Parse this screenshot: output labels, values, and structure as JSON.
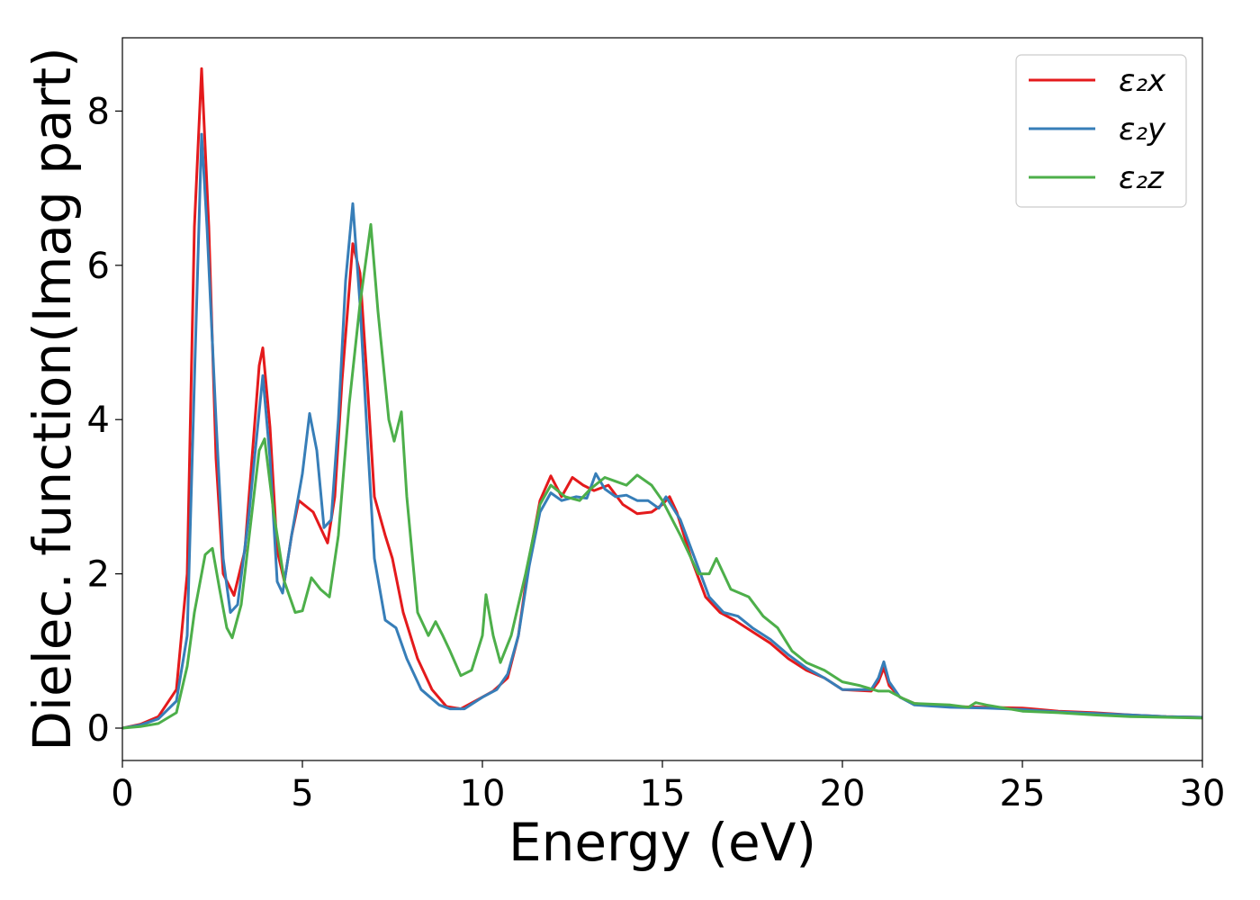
{
  "chart_data": {
    "type": "line",
    "title": "",
    "xlabel": "Energy (eV)",
    "ylabel": "Dielec. function(Imag part)",
    "xlim": [
      0,
      30
    ],
    "ylim": [
      -0.42,
      8.95
    ],
    "xticks": [
      0,
      5,
      10,
      15,
      20,
      25,
      30
    ],
    "yticks": [
      0,
      2,
      4,
      6,
      8
    ],
    "grid": false,
    "legend_position": "top-right",
    "series": [
      {
        "name": "ε₂x",
        "color": "#e41a1c",
        "points": [
          [
            0,
            0
          ],
          [
            0.5,
            0.05
          ],
          [
            1.0,
            0.15
          ],
          [
            1.5,
            0.5
          ],
          [
            1.8,
            2.0
          ],
          [
            2.0,
            6.5
          ],
          [
            2.2,
            8.55
          ],
          [
            2.4,
            6.5
          ],
          [
            2.6,
            3.5
          ],
          [
            2.8,
            2.0
          ],
          [
            3.1,
            1.72
          ],
          [
            3.4,
            2.3
          ],
          [
            3.6,
            3.5
          ],
          [
            3.8,
            4.7
          ],
          [
            3.9,
            4.93
          ],
          [
            4.1,
            3.9
          ],
          [
            4.3,
            2.3
          ],
          [
            4.5,
            1.9
          ],
          [
            4.7,
            2.5
          ],
          [
            4.9,
            2.95
          ],
          [
            5.3,
            2.8
          ],
          [
            5.6,
            2.5
          ],
          [
            5.7,
            2.4
          ],
          [
            5.9,
            3.0
          ],
          [
            6.1,
            4.5
          ],
          [
            6.4,
            6.28
          ],
          [
            6.6,
            5.9
          ],
          [
            6.8,
            4.5
          ],
          [
            7.0,
            3.0
          ],
          [
            7.3,
            2.5
          ],
          [
            7.5,
            2.2
          ],
          [
            7.8,
            1.5
          ],
          [
            8.2,
            0.9
          ],
          [
            8.6,
            0.5
          ],
          [
            9.0,
            0.28
          ],
          [
            9.4,
            0.25
          ],
          [
            9.8,
            0.35
          ],
          [
            10.3,
            0.48
          ],
          [
            10.7,
            0.65
          ],
          [
            11.0,
            1.2
          ],
          [
            11.3,
            2.2
          ],
          [
            11.6,
            2.95
          ],
          [
            11.9,
            3.27
          ],
          [
            12.2,
            3.0
          ],
          [
            12.5,
            3.25
          ],
          [
            12.8,
            3.15
          ],
          [
            13.1,
            3.08
          ],
          [
            13.5,
            3.15
          ],
          [
            13.9,
            2.9
          ],
          [
            14.3,
            2.78
          ],
          [
            14.7,
            2.8
          ],
          [
            15.0,
            2.9
          ],
          [
            15.2,
            3.0
          ],
          [
            15.4,
            2.8
          ],
          [
            15.8,
            2.2
          ],
          [
            16.2,
            1.7
          ],
          [
            16.6,
            1.5
          ],
          [
            17.0,
            1.4
          ],
          [
            17.5,
            1.25
          ],
          [
            18.0,
            1.1
          ],
          [
            18.5,
            0.9
          ],
          [
            19.0,
            0.75
          ],
          [
            19.5,
            0.65
          ],
          [
            20.0,
            0.5
          ],
          [
            20.8,
            0.48
          ],
          [
            21.0,
            0.6
          ],
          [
            21.15,
            0.78
          ],
          [
            21.3,
            0.55
          ],
          [
            21.6,
            0.4
          ],
          [
            22.0,
            0.32
          ],
          [
            23.0,
            0.28
          ],
          [
            24.0,
            0.27
          ],
          [
            25.0,
            0.26
          ],
          [
            26.0,
            0.22
          ],
          [
            27.0,
            0.2
          ],
          [
            28.0,
            0.17
          ],
          [
            29.0,
            0.15
          ],
          [
            30.0,
            0.14
          ]
        ]
      },
      {
        "name": "ε₂y",
        "color": "#377eb8",
        "points": [
          [
            0,
            0
          ],
          [
            0.5,
            0.04
          ],
          [
            1.0,
            0.12
          ],
          [
            1.5,
            0.35
          ],
          [
            1.8,
            1.2
          ],
          [
            2.0,
            4.5
          ],
          [
            2.2,
            7.7
          ],
          [
            2.35,
            6.5
          ],
          [
            2.6,
            4.0
          ],
          [
            2.8,
            2.2
          ],
          [
            3.0,
            1.5
          ],
          [
            3.2,
            1.6
          ],
          [
            3.5,
            2.7
          ],
          [
            3.9,
            4.57
          ],
          [
            4.1,
            3.5
          ],
          [
            4.3,
            1.9
          ],
          [
            4.45,
            1.75
          ],
          [
            4.7,
            2.5
          ],
          [
            5.0,
            3.3
          ],
          [
            5.2,
            4.08
          ],
          [
            5.4,
            3.6
          ],
          [
            5.6,
            2.6
          ],
          [
            5.8,
            2.7
          ],
          [
            6.0,
            4.0
          ],
          [
            6.2,
            5.8
          ],
          [
            6.4,
            6.8
          ],
          [
            6.6,
            5.5
          ],
          [
            6.8,
            3.8
          ],
          [
            7.0,
            2.2
          ],
          [
            7.3,
            1.4
          ],
          [
            7.6,
            1.3
          ],
          [
            7.9,
            0.9
          ],
          [
            8.3,
            0.5
          ],
          [
            8.8,
            0.3
          ],
          [
            9.1,
            0.25
          ],
          [
            9.5,
            0.25
          ],
          [
            10.0,
            0.4
          ],
          [
            10.4,
            0.5
          ],
          [
            10.7,
            0.7
          ],
          [
            11.0,
            1.2
          ],
          [
            11.3,
            2.1
          ],
          [
            11.6,
            2.8
          ],
          [
            11.9,
            3.05
          ],
          [
            12.2,
            2.95
          ],
          [
            12.6,
            3.0
          ],
          [
            12.9,
            2.98
          ],
          [
            13.15,
            3.3
          ],
          [
            13.4,
            3.1
          ],
          [
            13.7,
            3.0
          ],
          [
            14.0,
            3.02
          ],
          [
            14.3,
            2.95
          ],
          [
            14.6,
            2.95
          ],
          [
            14.9,
            2.85
          ],
          [
            15.1,
            3.0
          ],
          [
            15.5,
            2.7
          ],
          [
            15.9,
            2.2
          ],
          [
            16.3,
            1.7
          ],
          [
            16.7,
            1.5
          ],
          [
            17.1,
            1.45
          ],
          [
            17.5,
            1.3
          ],
          [
            18.0,
            1.15
          ],
          [
            18.5,
            0.95
          ],
          [
            19.0,
            0.78
          ],
          [
            19.5,
            0.65
          ],
          [
            20.0,
            0.5
          ],
          [
            20.8,
            0.5
          ],
          [
            21.0,
            0.65
          ],
          [
            21.15,
            0.86
          ],
          [
            21.3,
            0.6
          ],
          [
            21.6,
            0.4
          ],
          [
            22.0,
            0.3
          ],
          [
            23.0,
            0.27
          ],
          [
            24.0,
            0.26
          ],
          [
            25.0,
            0.24
          ],
          [
            26.0,
            0.21
          ],
          [
            27.0,
            0.19
          ],
          [
            28.0,
            0.17
          ],
          [
            29.0,
            0.15
          ],
          [
            30.0,
            0.14
          ]
        ]
      },
      {
        "name": "ε₂z",
        "color": "#4daf4a",
        "points": [
          [
            0,
            0
          ],
          [
            0.5,
            0.02
          ],
          [
            1.0,
            0.06
          ],
          [
            1.5,
            0.2
          ],
          [
            1.8,
            0.8
          ],
          [
            2.0,
            1.5
          ],
          [
            2.3,
            2.25
          ],
          [
            2.5,
            2.33
          ],
          [
            2.7,
            1.8
          ],
          [
            2.9,
            1.3
          ],
          [
            3.05,
            1.17
          ],
          [
            3.3,
            1.6
          ],
          [
            3.6,
            2.8
          ],
          [
            3.8,
            3.6
          ],
          [
            3.95,
            3.75
          ],
          [
            4.2,
            2.8
          ],
          [
            4.5,
            1.9
          ],
          [
            4.8,
            1.5
          ],
          [
            5.0,
            1.52
          ],
          [
            5.25,
            1.95
          ],
          [
            5.5,
            1.8
          ],
          [
            5.75,
            1.7
          ],
          [
            6.0,
            2.5
          ],
          [
            6.3,
            4.2
          ],
          [
            6.6,
            5.5
          ],
          [
            6.9,
            6.53
          ],
          [
            7.1,
            5.4
          ],
          [
            7.4,
            4.0
          ],
          [
            7.55,
            3.72
          ],
          [
            7.75,
            4.1
          ],
          [
            7.9,
            3.0
          ],
          [
            8.2,
            1.5
          ],
          [
            8.5,
            1.2
          ],
          [
            8.7,
            1.38
          ],
          [
            8.9,
            1.2
          ],
          [
            9.1,
            1.0
          ],
          [
            9.4,
            0.68
          ],
          [
            9.7,
            0.75
          ],
          [
            10.0,
            1.2
          ],
          [
            10.1,
            1.73
          ],
          [
            10.3,
            1.2
          ],
          [
            10.5,
            0.85
          ],
          [
            10.8,
            1.2
          ],
          [
            11.2,
            2.0
          ],
          [
            11.6,
            2.9
          ],
          [
            11.9,
            3.15
          ],
          [
            12.3,
            3.0
          ],
          [
            12.7,
            2.95
          ],
          [
            13.0,
            3.1
          ],
          [
            13.4,
            3.25
          ],
          [
            13.7,
            3.2
          ],
          [
            14.0,
            3.15
          ],
          [
            14.3,
            3.28
          ],
          [
            14.7,
            3.15
          ],
          [
            15.0,
            2.95
          ],
          [
            15.5,
            2.5
          ],
          [
            16.0,
            2.0
          ],
          [
            16.3,
            2.0
          ],
          [
            16.5,
            2.2
          ],
          [
            16.9,
            1.8
          ],
          [
            17.4,
            1.7
          ],
          [
            17.8,
            1.45
          ],
          [
            18.2,
            1.3
          ],
          [
            18.6,
            1.0
          ],
          [
            19.0,
            0.85
          ],
          [
            19.5,
            0.75
          ],
          [
            20.0,
            0.6
          ],
          [
            20.5,
            0.55
          ],
          [
            21.0,
            0.48
          ],
          [
            21.3,
            0.48
          ],
          [
            21.7,
            0.38
          ],
          [
            22.0,
            0.32
          ],
          [
            23.0,
            0.3
          ],
          [
            23.5,
            0.27
          ],
          [
            23.7,
            0.33
          ],
          [
            24.0,
            0.3
          ],
          [
            25.0,
            0.22
          ],
          [
            26.0,
            0.2
          ],
          [
            27.0,
            0.17
          ],
          [
            28.0,
            0.15
          ],
          [
            29.0,
            0.14
          ],
          [
            30.0,
            0.13
          ]
        ]
      }
    ]
  }
}
